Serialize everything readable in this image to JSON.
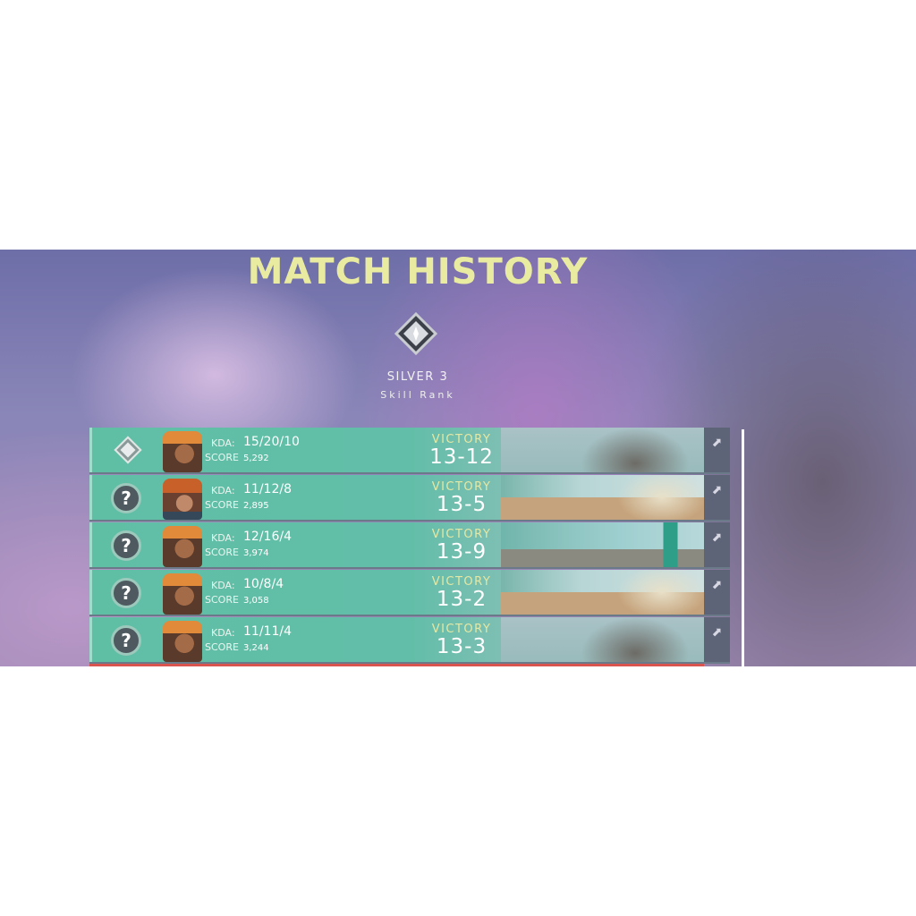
{
  "header": {
    "title": "MATCH HISTORY",
    "rank": "SILVER 3",
    "rank_label": "Skill Rank"
  },
  "labels": {
    "kda": "KDA:",
    "score": "SCORE"
  },
  "matches": [
    {
      "badge": "rank-icon",
      "agent": "female-agent",
      "kda": "15/20/10",
      "score": "5,292",
      "result": "VICTORY",
      "final": "13-12",
      "map": "haven"
    },
    {
      "badge": "?",
      "agent": "male-agent",
      "kda": "11/12/8",
      "score": "2,895",
      "result": "VICTORY",
      "final": "13-5",
      "map": "bind"
    },
    {
      "badge": "?",
      "agent": "female-agent",
      "kda": "12/16/4",
      "score": "3,974",
      "result": "VICTORY",
      "final": "13-9",
      "map": "ascent"
    },
    {
      "badge": "?",
      "agent": "female-agent",
      "kda": "10/8/4",
      "score": "3,058",
      "result": "VICTORY",
      "final": "13-2",
      "map": "bind"
    },
    {
      "badge": "?",
      "agent": "female-agent",
      "kda": "11/11/4",
      "score": "3,244",
      "result": "VICTORY",
      "final": "13-3",
      "map": "haven"
    }
  ],
  "colors": {
    "victory": "#e5e8a4",
    "row": "#5fbfa5",
    "title": "#e9eba0"
  }
}
